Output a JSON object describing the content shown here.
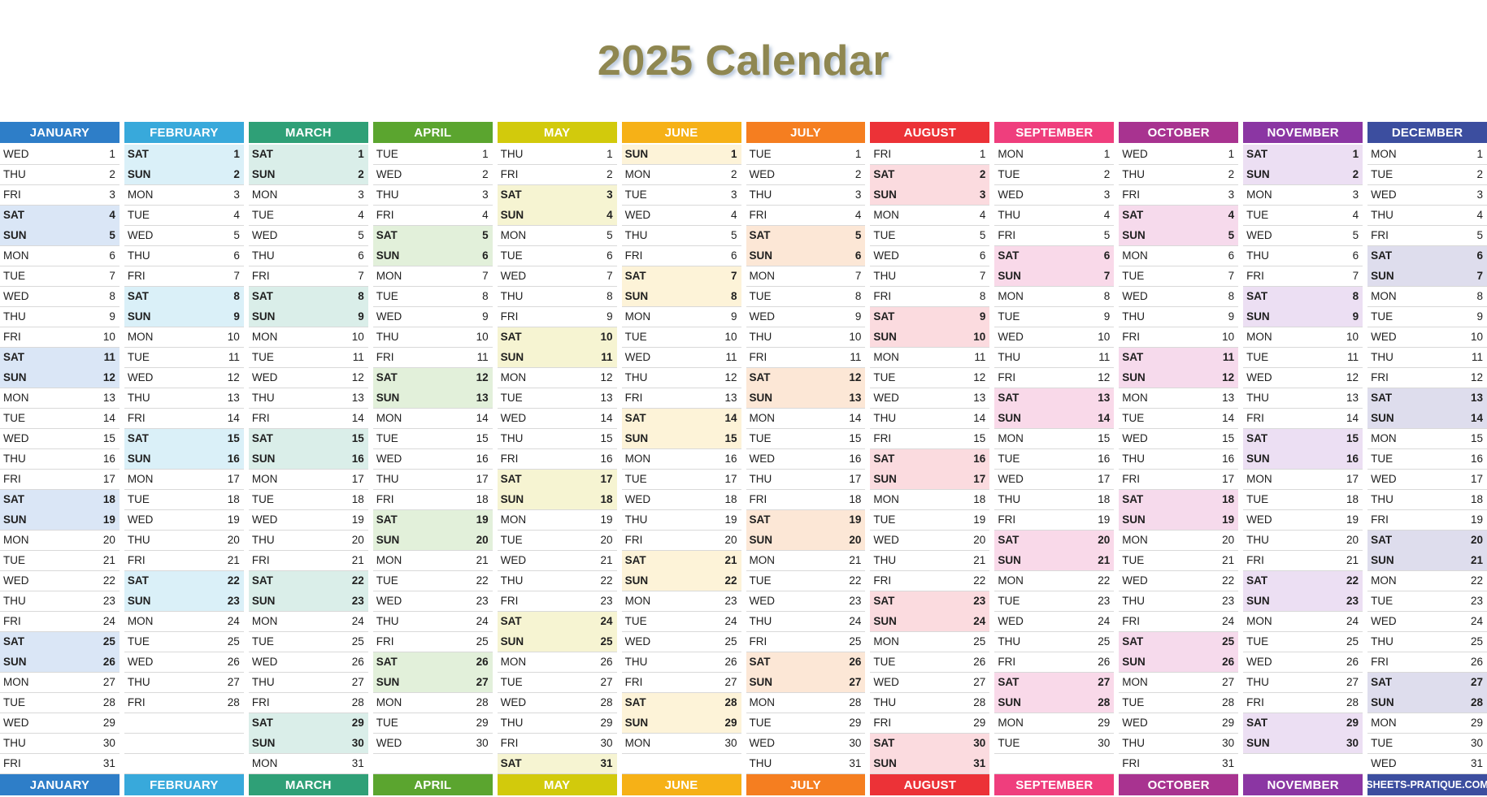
{
  "title": "2025 Calendar",
  "title_color": "#8F8751",
  "separator_color": "#D9D9D9",
  "footer_site": "SHEETS-PRATIQUE.COM",
  "months": [
    {
      "name": "JANUARY",
      "color": "#2E7EC8",
      "tint": "#DAE6F6",
      "days": [
        [
          "WED",
          1
        ],
        [
          "THU",
          2
        ],
        [
          "FRI",
          3
        ],
        [
          "SAT",
          4
        ],
        [
          "SUN",
          5
        ],
        [
          "MON",
          6
        ],
        [
          "TUE",
          7
        ],
        [
          "WED",
          8
        ],
        [
          "THU",
          9
        ],
        [
          "FRI",
          10
        ],
        [
          "SAT",
          11
        ],
        [
          "SUN",
          12
        ],
        [
          "MON",
          13
        ],
        [
          "TUE",
          14
        ],
        [
          "WED",
          15
        ],
        [
          "THU",
          16
        ],
        [
          "FRI",
          17
        ],
        [
          "SAT",
          18
        ],
        [
          "SUN",
          19
        ],
        [
          "MON",
          20
        ],
        [
          "TUE",
          21
        ],
        [
          "WED",
          22
        ],
        [
          "THU",
          23
        ],
        [
          "FRI",
          24
        ],
        [
          "SAT",
          25
        ],
        [
          "SUN",
          26
        ],
        [
          "MON",
          27
        ],
        [
          "TUE",
          28
        ],
        [
          "WED",
          29
        ],
        [
          "THU",
          30
        ],
        [
          "FRI",
          31
        ]
      ]
    },
    {
      "name": "FEBRUARY",
      "color": "#38A9DB",
      "tint": "#DAF0F8",
      "days": [
        [
          "SAT",
          1
        ],
        [
          "SUN",
          2
        ],
        [
          "MON",
          3
        ],
        [
          "TUE",
          4
        ],
        [
          "WED",
          5
        ],
        [
          "THU",
          6
        ],
        [
          "FRI",
          7
        ],
        [
          "SAT",
          8
        ],
        [
          "SUN",
          9
        ],
        [
          "MON",
          10
        ],
        [
          "TUE",
          11
        ],
        [
          "WED",
          12
        ],
        [
          "THU",
          13
        ],
        [
          "FRI",
          14
        ],
        [
          "SAT",
          15
        ],
        [
          "SUN",
          16
        ],
        [
          "MON",
          17
        ],
        [
          "TUE",
          18
        ],
        [
          "WED",
          19
        ],
        [
          "THU",
          20
        ],
        [
          "FRI",
          21
        ],
        [
          "SAT",
          22
        ],
        [
          "SUN",
          23
        ],
        [
          "MON",
          24
        ],
        [
          "TUE",
          25
        ],
        [
          "WED",
          26
        ],
        [
          "THU",
          27
        ],
        [
          "FRI",
          28
        ]
      ]
    },
    {
      "name": "MARCH",
      "color": "#2FA077",
      "tint": "#DAEEE9",
      "days": [
        [
          "SAT",
          1
        ],
        [
          "SUN",
          2
        ],
        [
          "MON",
          3
        ],
        [
          "TUE",
          4
        ],
        [
          "WED",
          5
        ],
        [
          "THU",
          6
        ],
        [
          "FRI",
          7
        ],
        [
          "SAT",
          8
        ],
        [
          "SUN",
          9
        ],
        [
          "MON",
          10
        ],
        [
          "TUE",
          11
        ],
        [
          "WED",
          12
        ],
        [
          "THU",
          13
        ],
        [
          "FRI",
          14
        ],
        [
          "SAT",
          15
        ],
        [
          "SUN",
          16
        ],
        [
          "MON",
          17
        ],
        [
          "TUE",
          18
        ],
        [
          "WED",
          19
        ],
        [
          "THU",
          20
        ],
        [
          "FRI",
          21
        ],
        [
          "SAT",
          22
        ],
        [
          "SUN",
          23
        ],
        [
          "MON",
          24
        ],
        [
          "TUE",
          25
        ],
        [
          "WED",
          26
        ],
        [
          "THU",
          27
        ],
        [
          "FRI",
          28
        ],
        [
          "SAT",
          29
        ],
        [
          "SUN",
          30
        ],
        [
          "MON",
          31
        ]
      ]
    },
    {
      "name": "APRIL",
      "color": "#5BA52F",
      "tint": "#E2F0DA",
      "days": [
        [
          "TUE",
          1
        ],
        [
          "WED",
          2
        ],
        [
          "THU",
          3
        ],
        [
          "FRI",
          4
        ],
        [
          "SAT",
          5
        ],
        [
          "SUN",
          6
        ],
        [
          "MON",
          7
        ],
        [
          "TUE",
          8
        ],
        [
          "WED",
          9
        ],
        [
          "THU",
          10
        ],
        [
          "FRI",
          11
        ],
        [
          "SAT",
          12
        ],
        [
          "SUN",
          13
        ],
        [
          "MON",
          14
        ],
        [
          "TUE",
          15
        ],
        [
          "WED",
          16
        ],
        [
          "THU",
          17
        ],
        [
          "FRI",
          18
        ],
        [
          "SAT",
          19
        ],
        [
          "SUN",
          20
        ],
        [
          "MON",
          21
        ],
        [
          "TUE",
          22
        ],
        [
          "WED",
          23
        ],
        [
          "THU",
          24
        ],
        [
          "FRI",
          25
        ],
        [
          "SAT",
          26
        ],
        [
          "SUN",
          27
        ],
        [
          "MON",
          28
        ],
        [
          "TUE",
          29
        ],
        [
          "WED",
          30
        ]
      ]
    },
    {
      "name": "MAY",
      "color": "#D2CA0C",
      "tint": "#F6F4D2",
      "days": [
        [
          "THU",
          1
        ],
        [
          "FRI",
          2
        ],
        [
          "SAT",
          3
        ],
        [
          "SUN",
          4
        ],
        [
          "MON",
          5
        ],
        [
          "TUE",
          6
        ],
        [
          "WED",
          7
        ],
        [
          "THU",
          8
        ],
        [
          "FRI",
          9
        ],
        [
          "SAT",
          10
        ],
        [
          "SUN",
          11
        ],
        [
          "MON",
          12
        ],
        [
          "TUE",
          13
        ],
        [
          "WED",
          14
        ],
        [
          "THU",
          15
        ],
        [
          "FRI",
          16
        ],
        [
          "SAT",
          17
        ],
        [
          "SUN",
          18
        ],
        [
          "MON",
          19
        ],
        [
          "TUE",
          20
        ],
        [
          "WED",
          21
        ],
        [
          "THU",
          22
        ],
        [
          "FRI",
          23
        ],
        [
          "SAT",
          24
        ],
        [
          "SUN",
          25
        ],
        [
          "MON",
          26
        ],
        [
          "TUE",
          27
        ],
        [
          "WED",
          28
        ],
        [
          "THU",
          29
        ],
        [
          "FRI",
          30
        ],
        [
          "SAT",
          31
        ]
      ]
    },
    {
      "name": "JUNE",
      "color": "#F6B117",
      "tint": "#FDF3D8",
      "days": [
        [
          "SUN",
          1
        ],
        [
          "MON",
          2
        ],
        [
          "TUE",
          3
        ],
        [
          "WED",
          4
        ],
        [
          "THU",
          5
        ],
        [
          "FRI",
          6
        ],
        [
          "SAT",
          7
        ],
        [
          "SUN",
          8
        ],
        [
          "MON",
          9
        ],
        [
          "TUE",
          10
        ],
        [
          "WED",
          11
        ],
        [
          "THU",
          12
        ],
        [
          "FRI",
          13
        ],
        [
          "SAT",
          14
        ],
        [
          "SUN",
          15
        ],
        [
          "MON",
          16
        ],
        [
          "TUE",
          17
        ],
        [
          "WED",
          18
        ],
        [
          "THU",
          19
        ],
        [
          "FRI",
          20
        ],
        [
          "SAT",
          21
        ],
        [
          "SUN",
          22
        ],
        [
          "MON",
          23
        ],
        [
          "TUE",
          24
        ],
        [
          "WED",
          25
        ],
        [
          "THU",
          26
        ],
        [
          "FRI",
          27
        ],
        [
          "SAT",
          28
        ],
        [
          "SUN",
          29
        ],
        [
          "MON",
          30
        ]
      ]
    },
    {
      "name": "JULY",
      "color": "#F57E20",
      "tint": "#FCE7D6",
      "days": [
        [
          "TUE",
          1
        ],
        [
          "WED",
          2
        ],
        [
          "THU",
          3
        ],
        [
          "FRI",
          4
        ],
        [
          "SAT",
          5
        ],
        [
          "SUN",
          6
        ],
        [
          "MON",
          7
        ],
        [
          "TUE",
          8
        ],
        [
          "WED",
          9
        ],
        [
          "THU",
          10
        ],
        [
          "FRI",
          11
        ],
        [
          "SAT",
          12
        ],
        [
          "SUN",
          13
        ],
        [
          "MON",
          14
        ],
        [
          "TUE",
          15
        ],
        [
          "WED",
          16
        ],
        [
          "THU",
          17
        ],
        [
          "FRI",
          18
        ],
        [
          "SAT",
          19
        ],
        [
          "SUN",
          20
        ],
        [
          "MON",
          21
        ],
        [
          "TUE",
          22
        ],
        [
          "WED",
          23
        ],
        [
          "THU",
          24
        ],
        [
          "FRI",
          25
        ],
        [
          "SAT",
          26
        ],
        [
          "SUN",
          27
        ],
        [
          "MON",
          28
        ],
        [
          "TUE",
          29
        ],
        [
          "WED",
          30
        ],
        [
          "THU",
          31
        ]
      ]
    },
    {
      "name": "AUGUST",
      "color": "#EC3237",
      "tint": "#FBDBDF",
      "days": [
        [
          "FRI",
          1
        ],
        [
          "SAT",
          2
        ],
        [
          "SUN",
          3
        ],
        [
          "MON",
          4
        ],
        [
          "TUE",
          5
        ],
        [
          "WED",
          6
        ],
        [
          "THU",
          7
        ],
        [
          "FRI",
          8
        ],
        [
          "SAT",
          9
        ],
        [
          "SUN",
          10
        ],
        [
          "MON",
          11
        ],
        [
          "TUE",
          12
        ],
        [
          "WED",
          13
        ],
        [
          "THU",
          14
        ],
        [
          "FRI",
          15
        ],
        [
          "SAT",
          16
        ],
        [
          "SUN",
          17
        ],
        [
          "MON",
          18
        ],
        [
          "TUE",
          19
        ],
        [
          "WED",
          20
        ],
        [
          "THU",
          21
        ],
        [
          "FRI",
          22
        ],
        [
          "SAT",
          23
        ],
        [
          "SUN",
          24
        ],
        [
          "MON",
          25
        ],
        [
          "TUE",
          26
        ],
        [
          "WED",
          27
        ],
        [
          "THU",
          28
        ],
        [
          "FRI",
          29
        ],
        [
          "SAT",
          30
        ],
        [
          "SUN",
          31
        ]
      ]
    },
    {
      "name": "SEPTEMBER",
      "color": "#EF3E7D",
      "tint": "#F9D9E9",
      "days": [
        [
          "MON",
          1
        ],
        [
          "TUE",
          2
        ],
        [
          "WED",
          3
        ],
        [
          "THU",
          4
        ],
        [
          "FRI",
          5
        ],
        [
          "SAT",
          6
        ],
        [
          "SUN",
          7
        ],
        [
          "MON",
          8
        ],
        [
          "TUE",
          9
        ],
        [
          "WED",
          10
        ],
        [
          "THU",
          11
        ],
        [
          "FRI",
          12
        ],
        [
          "SAT",
          13
        ],
        [
          "SUN",
          14
        ],
        [
          "MON",
          15
        ],
        [
          "TUE",
          16
        ],
        [
          "WED",
          17
        ],
        [
          "THU",
          18
        ],
        [
          "FRI",
          19
        ],
        [
          "SAT",
          20
        ],
        [
          "SUN",
          21
        ],
        [
          "MON",
          22
        ],
        [
          "TUE",
          23
        ],
        [
          "WED",
          24
        ],
        [
          "THU",
          25
        ],
        [
          "FRI",
          26
        ],
        [
          "SAT",
          27
        ],
        [
          "SUN",
          28
        ],
        [
          "MON",
          29
        ],
        [
          "TUE",
          30
        ]
      ]
    },
    {
      "name": "OCTOBER",
      "color": "#A83390",
      "tint": "#F6DAEC",
      "days": [
        [
          "WED",
          1
        ],
        [
          "THU",
          2
        ],
        [
          "FRI",
          3
        ],
        [
          "SAT",
          4
        ],
        [
          "SUN",
          5
        ],
        [
          "MON",
          6
        ],
        [
          "TUE",
          7
        ],
        [
          "WED",
          8
        ],
        [
          "THU",
          9
        ],
        [
          "FRI",
          10
        ],
        [
          "SAT",
          11
        ],
        [
          "SUN",
          12
        ],
        [
          "MON",
          13
        ],
        [
          "TUE",
          14
        ],
        [
          "WED",
          15
        ],
        [
          "THU",
          16
        ],
        [
          "FRI",
          17
        ],
        [
          "SAT",
          18
        ],
        [
          "SUN",
          19
        ],
        [
          "MON",
          20
        ],
        [
          "TUE",
          21
        ],
        [
          "WED",
          22
        ],
        [
          "THU",
          23
        ],
        [
          "FRI",
          24
        ],
        [
          "SAT",
          25
        ],
        [
          "SUN",
          26
        ],
        [
          "MON",
          27
        ],
        [
          "TUE",
          28
        ],
        [
          "WED",
          29
        ],
        [
          "THU",
          30
        ],
        [
          "FRI",
          31
        ]
      ]
    },
    {
      "name": "NOVEMBER",
      "color": "#8B36A3",
      "tint": "#ECDFF3",
      "days": [
        [
          "SAT",
          1
        ],
        [
          "SUN",
          2
        ],
        [
          "MON",
          3
        ],
        [
          "TUE",
          4
        ],
        [
          "WED",
          5
        ],
        [
          "THU",
          6
        ],
        [
          "FRI",
          7
        ],
        [
          "SAT",
          8
        ],
        [
          "SUN",
          9
        ],
        [
          "MON",
          10
        ],
        [
          "TUE",
          11
        ],
        [
          "WED",
          12
        ],
        [
          "THU",
          13
        ],
        [
          "FRI",
          14
        ],
        [
          "SAT",
          15
        ],
        [
          "SUN",
          16
        ],
        [
          "MON",
          17
        ],
        [
          "TUE",
          18
        ],
        [
          "WED",
          19
        ],
        [
          "THU",
          20
        ],
        [
          "FRI",
          21
        ],
        [
          "SAT",
          22
        ],
        [
          "SUN",
          23
        ],
        [
          "MON",
          24
        ],
        [
          "TUE",
          25
        ],
        [
          "WED",
          26
        ],
        [
          "THU",
          27
        ],
        [
          "FRI",
          28
        ],
        [
          "SAT",
          29
        ],
        [
          "SUN",
          30
        ]
      ]
    },
    {
      "name": "DECEMBER",
      "color": "#3C4E9F",
      "tint": "#DEDDED",
      "days": [
        [
          "MON",
          1
        ],
        [
          "TUE",
          2
        ],
        [
          "WED",
          3
        ],
        [
          "THU",
          4
        ],
        [
          "FRI",
          5
        ],
        [
          "SAT",
          6
        ],
        [
          "SUN",
          7
        ],
        [
          "MON",
          8
        ],
        [
          "TUE",
          9
        ],
        [
          "WED",
          10
        ],
        [
          "THU",
          11
        ],
        [
          "FRI",
          12
        ],
        [
          "SAT",
          13
        ],
        [
          "SUN",
          14
        ],
        [
          "MON",
          15
        ],
        [
          "TUE",
          16
        ],
        [
          "WED",
          17
        ],
        [
          "THU",
          18
        ],
        [
          "FRI",
          19
        ],
        [
          "SAT",
          20
        ],
        [
          "SUN",
          21
        ],
        [
          "MON",
          22
        ],
        [
          "TUE",
          23
        ],
        [
          "WED",
          24
        ],
        [
          "THU",
          25
        ],
        [
          "FRI",
          26
        ],
        [
          "SAT",
          27
        ],
        [
          "SUN",
          28
        ],
        [
          "MON",
          29
        ],
        [
          "TUE",
          30
        ],
        [
          "WED",
          31
        ]
      ]
    }
  ]
}
